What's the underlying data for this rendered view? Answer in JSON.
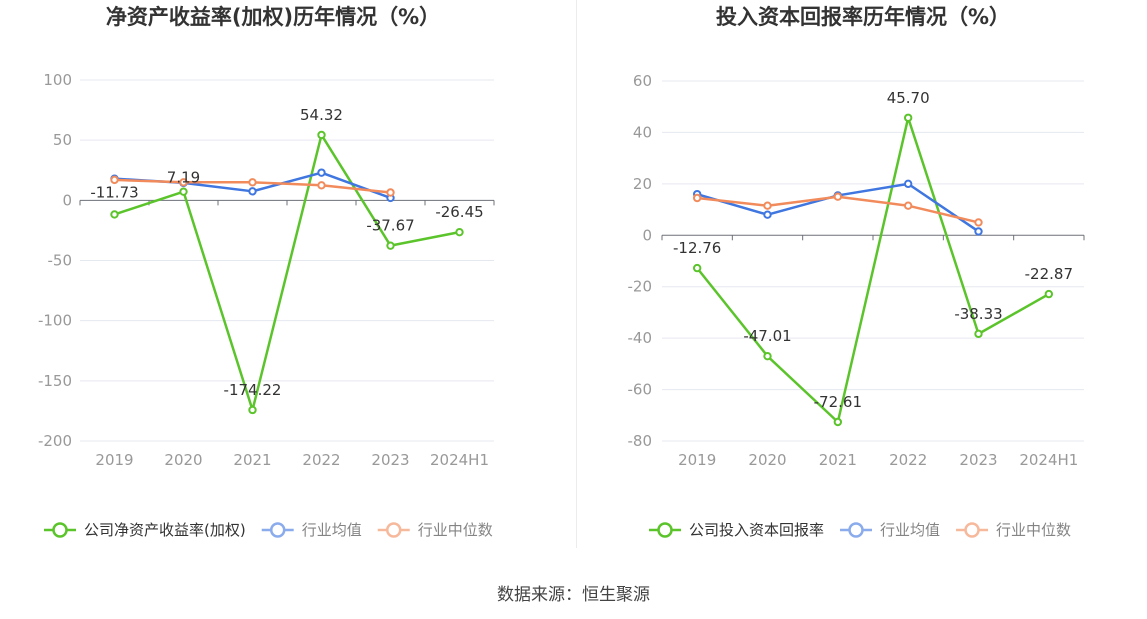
{
  "source": {
    "label": "数据来源：恒生聚源"
  },
  "chart_data": [
    {
      "type": "line",
      "title": "净资产收益率(加权)历年情况（%）",
      "categories": [
        "2019",
        "2020",
        "2021",
        "2022",
        "2023",
        "2024H1"
      ],
      "ylim": [
        -200,
        100
      ],
      "yticks": [
        100,
        50,
        0,
        -50,
        -100,
        -150,
        -200
      ],
      "grid": true,
      "legend_position": "bottom-center",
      "series": [
        {
          "name": "公司净资产收益率(加权)",
          "color": "#5bc42b",
          "values": [
            -11.73,
            7.19,
            -174.22,
            54.32,
            -37.67,
            -26.45
          ],
          "labels": [
            "-11.73",
            "7.19",
            "-174.22",
            "54.32",
            "-37.67",
            "-26.45"
          ]
        },
        {
          "name": "行业均值",
          "color": "#3f76e0",
          "values": [
            18,
            14.5,
            7.5,
            23,
            2,
            null
          ]
        },
        {
          "name": "行业中位数",
          "color": "#f28b5c",
          "values": [
            17,
            15,
            15,
            12.5,
            6.5,
            null
          ]
        }
      ]
    },
    {
      "type": "line",
      "title": "投入资本回报率历年情况（%）",
      "categories": [
        "2019",
        "2020",
        "2021",
        "2022",
        "2023",
        "2024H1"
      ],
      "ylim": [
        -80,
        60
      ],
      "yticks": [
        60,
        40,
        20,
        0,
        -20,
        -40,
        -60,
        -80
      ],
      "grid": true,
      "legend_position": "bottom-center",
      "series": [
        {
          "name": "公司投入资本回报率",
          "color": "#5bc42b",
          "values": [
            -12.76,
            -47.01,
            -72.61,
            45.7,
            -38.33,
            -22.87
          ],
          "labels": [
            "-12.76",
            "-47.01",
            "-72.61",
            "45.70",
            "-38.33",
            "-22.87"
          ]
        },
        {
          "name": "行业均值",
          "color": "#3f76e0",
          "values": [
            16,
            8,
            15.5,
            20,
            1.5,
            null
          ]
        },
        {
          "name": "行业中位数",
          "color": "#f28b5c",
          "values": [
            14.5,
            11.5,
            15,
            11.5,
            5,
            null
          ]
        }
      ]
    }
  ]
}
